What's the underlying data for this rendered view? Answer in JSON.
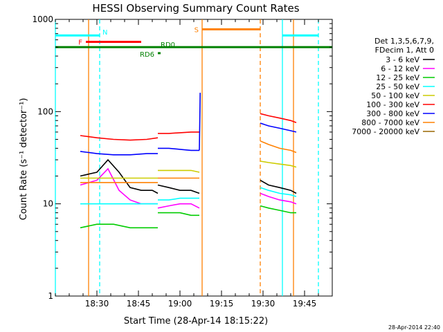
{
  "chart_data": {
    "type": "line",
    "title": "HESSI Observing Summary Count Rates",
    "xlabel": "Start Time (28-Apr-14 18:15:22)",
    "ylabel": "Count Rate (s⁻¹ detector⁻¹)",
    "yscale": "log",
    "ylim": [
      1,
      1000
    ],
    "xlim": [
      "18:15",
      "19:55"
    ],
    "x_ticks": [
      "18:30",
      "18:45",
      "19:00",
      "19:15",
      "19:30",
      "19:45"
    ],
    "y_ticks": [
      "1",
      "10",
      "100",
      "1000"
    ],
    "legend_title": [
      "Det 1,3,5,6,7,9,",
      "FDecim 1, Att 0"
    ],
    "legend_position": "right",
    "series": [
      {
        "name": "3 - 6 keV",
        "color": "#000000",
        "segments": [
          {
            "x": [
              "18:24",
              "18:30",
              "18:34",
              "18:38",
              "18:42",
              "18:46",
              "18:50",
              "18:52"
            ],
            "y": [
              20,
              22,
              30,
              22,
              15,
              14,
              14,
              13
            ]
          },
          {
            "x": [
              "18:52",
              "18:56",
              "19:00",
              "19:04",
              "19:07"
            ],
            "y": [
              16,
              15,
              14,
              14,
              13
            ]
          },
          {
            "x": [
              "19:29",
              "19:32",
              "19:36",
              "19:40",
              "19:42"
            ],
            "y": [
              18,
              16,
              15,
              14,
              13
            ]
          }
        ]
      },
      {
        "name": "6 - 12 keV",
        "color": "#ff00ff",
        "segments": [
          {
            "x": [
              "18:24",
              "18:30",
              "18:34",
              "18:38",
              "18:42",
              "18:46",
              "18:50",
              "18:52"
            ],
            "y": [
              16,
              18,
              24,
              14,
              11,
              10,
              10,
              10
            ]
          },
          {
            "x": [
              "18:52",
              "18:56",
              "19:00",
              "19:04",
              "19:07"
            ],
            "y": [
              9,
              9.5,
              10,
              10,
              9
            ]
          },
          {
            "x": [
              "19:29",
              "19:32",
              "19:36",
              "19:40",
              "19:42"
            ],
            "y": [
              13,
              12,
              11,
              10.5,
              10
            ]
          }
        ]
      },
      {
        "name": "12 - 25 keV",
        "color": "#00cc00",
        "segments": [
          {
            "x": [
              "18:24",
              "18:30",
              "18:36",
              "18:42",
              "18:48",
              "18:52"
            ],
            "y": [
              5.5,
              6,
              6,
              5.5,
              5.5,
              5.5
            ]
          },
          {
            "x": [
              "18:52",
              "18:56",
              "19:00",
              "19:04",
              "19:07"
            ],
            "y": [
              8,
              8,
              8,
              7.5,
              7.5
            ]
          },
          {
            "x": [
              "19:29",
              "19:32",
              "19:36",
              "19:40",
              "19:42"
            ],
            "y": [
              9.5,
              9,
              8.5,
              8,
              8
            ]
          }
        ]
      },
      {
        "name": "25 - 50 keV",
        "color": "#00ffff",
        "segments": [
          {
            "x": [
              "18:24",
              "18:30",
              "18:36",
              "18:42",
              "18:48",
              "18:52"
            ],
            "y": [
              10,
              10,
              10,
              10,
              10,
              10
            ]
          },
          {
            "x": [
              "18:52",
              "18:56",
              "19:00",
              "19:04",
              "19:07"
            ],
            "y": [
              11,
              11,
              11.5,
              11.5,
              11.5
            ]
          },
          {
            "x": [
              "19:29",
              "19:32",
              "19:36",
              "19:40",
              "19:42"
            ],
            "y": [
              15,
              14,
              13,
              12.5,
              12
            ]
          }
        ]
      },
      {
        "name": "50 - 100 keV",
        "color": "#cccc00",
        "segments": [
          {
            "x": [
              "18:24",
              "18:30",
              "18:36",
              "18:42",
              "18:48",
              "18:52"
            ],
            "y": [
              19,
              19,
              19,
              19,
              19,
              19
            ]
          },
          {
            "x": [
              "18:52",
              "18:56",
              "19:00",
              "19:04",
              "19:07"
            ],
            "y": [
              23,
              23,
              23,
              23,
              22
            ]
          },
          {
            "x": [
              "19:29",
              "19:32",
              "19:36",
              "19:40",
              "19:42"
            ],
            "y": [
              29,
              28,
              27,
              26,
              25
            ]
          }
        ]
      },
      {
        "name": "100 - 300 keV",
        "color": "#ff0000",
        "segments": [
          {
            "x": [
              "18:24",
              "18:30",
              "18:36",
              "18:42",
              "18:48",
              "18:52"
            ],
            "y": [
              55,
              52,
              50,
              49,
              50,
              52
            ]
          },
          {
            "x": [
              "18:52",
              "18:56",
              "19:00",
              "19:04",
              "19:07"
            ],
            "y": [
              58,
              58,
              59,
              60,
              60
            ]
          },
          {
            "x": [
              "19:29",
              "19:32",
              "19:36",
              "19:40",
              "19:42"
            ],
            "y": [
              95,
              90,
              85,
              80,
              76
            ]
          }
        ]
      },
      {
        "name": "300 - 800 keV",
        "color": "#0000ff",
        "segments": [
          {
            "x": [
              "18:24",
              "18:30",
              "18:36",
              "18:42",
              "18:48",
              "18:52"
            ],
            "y": [
              37,
              35,
              34,
              34,
              35,
              35
            ]
          },
          {
            "x": [
              "18:52",
              "18:56",
              "19:00",
              "19:04",
              "19:07"
            ],
            "y": [
              40,
              40,
              39,
              38,
              38
            ]
          },
          {
            "x": [
              "19:07",
              "19:07.3"
            ],
            "y": [
              38,
              160
            ]
          },
          {
            "x": [
              "19:29",
              "19:32",
              "19:36",
              "19:40",
              "19:42"
            ],
            "y": [
              75,
              70,
              66,
              62,
              60
            ]
          }
        ]
      },
      {
        "name": "800 - 7000 keV",
        "color": "#ff8000",
        "segments": [
          {
            "x": [
              "18:24",
              "18:30",
              "18:36",
              "18:42",
              "18:48",
              "18:52"
            ],
            "y": [
              17,
              17,
              17,
              17,
              17,
              17
            ]
          },
          {
            "x": [
              "18:52",
              "18:56",
              "19:00",
              "19:04",
              "19:07"
            ],
            "y": [
              19,
              19,
              19,
              19,
              19
            ]
          },
          {
            "x": [
              "19:29",
              "19:32",
              "19:36",
              "19:40",
              "19:42"
            ],
            "y": [
              48,
              44,
              40,
              38,
              36
            ]
          }
        ]
      },
      {
        "name": "7000 - 20000 keV",
        "color": "#996600",
        "segments": []
      }
    ],
    "flags": [
      {
        "label": "N",
        "color": "#00ffff",
        "label_color": "#00ffff",
        "y": 670,
        "ranges": [
          [
            "18:15",
            "18:31"
          ],
          [
            "19:37",
            "19:50"
          ]
        ]
      },
      {
        "label": "F",
        "color": "#ff0000",
        "label_color": "#ff0000",
        "y": 570,
        "ranges": [
          [
            "18:26",
            "18:46"
          ]
        ]
      },
      {
        "label": "S",
        "color": "#ff8000",
        "label_color": "#ff8000",
        "y": 780,
        "ranges": [
          [
            "19:08",
            "19:29"
          ]
        ]
      },
      {
        "label": "RD0",
        "color": "#008000",
        "label_color": "#008000",
        "y": 500,
        "ranges": [
          [
            "18:15",
            "19:55"
          ]
        ]
      },
      {
        "label": "RD6",
        "color": "#008000",
        "label_color": "#008000",
        "y": 430,
        "ranges": [
          [
            "18:52",
            "18:53"
          ]
        ]
      }
    ],
    "vertical_markers": [
      {
        "x": "18:15",
        "color": "#00ffff",
        "style": "solid"
      },
      {
        "x": "18:31",
        "color": "#00ffff",
        "style": "dashed"
      },
      {
        "x": "18:27",
        "color": "#ff8000",
        "style": "solid"
      },
      {
        "x": "19:08",
        "color": "#ff8000",
        "style": "solid"
      },
      {
        "x": "19:29",
        "color": "#ff8000",
        "style": "dashed"
      },
      {
        "x": "19:37",
        "color": "#00ffff",
        "style": "solid"
      },
      {
        "x": "19:41",
        "color": "#ff8000",
        "style": "solid"
      },
      {
        "x": "19:50",
        "color": "#00ffff",
        "style": "dashed"
      }
    ],
    "footer": "28-Apr-2014 22:40"
  }
}
